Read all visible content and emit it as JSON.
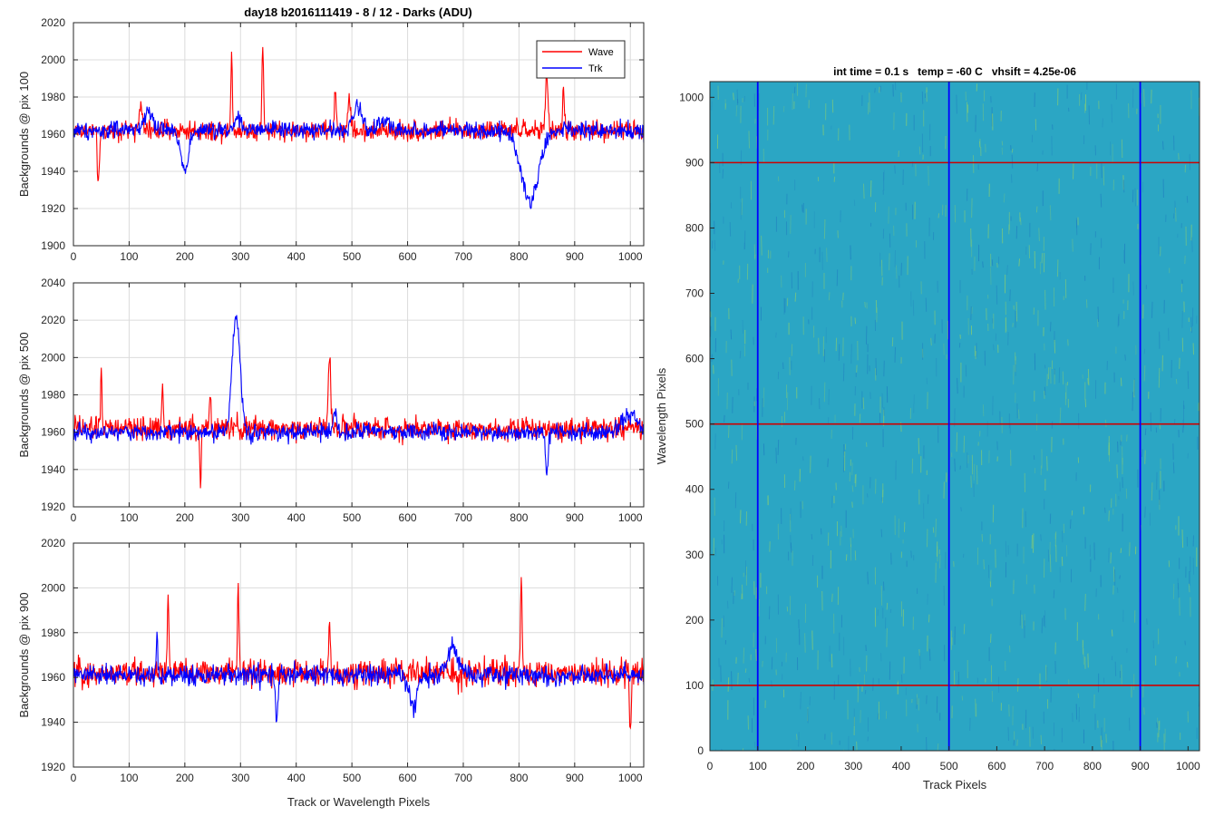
{
  "figure": {
    "main_title": "day18 b2016111419 - 8 / 12 - Darks (ADU)",
    "image_title": "int time = 0.1 s   temp = -60 C   vhsift = 4.25e-06"
  },
  "chart_data": [
    {
      "type": "line",
      "ylabel": "Backgrounds @ pix 100",
      "xlabel": "",
      "xlim": [
        0,
        1024
      ],
      "ylim": [
        1900,
        2020
      ],
      "xticks": [
        0,
        100,
        200,
        300,
        400,
        500,
        600,
        700,
        800,
        900,
        1000
      ],
      "yticks": [
        1900,
        1920,
        1940,
        1960,
        1980,
        2000,
        2020
      ],
      "grid": true,
      "legend": "top-right",
      "series": [
        {
          "name": "Wave",
          "color": "#ff0000",
          "base": 1962,
          "noise": 7,
          "features": [
            {
              "x": 45,
              "w": 3,
              "a": -28
            },
            {
              "x": 120,
              "w": 5,
              "a": 12
            },
            {
              "x": 284,
              "w": 2,
              "a": 42
            },
            {
              "x": 340,
              "w": 2,
              "a": 48
            },
            {
              "x": 495,
              "w": 3,
              "a": 20
            },
            {
              "x": 470,
              "w": 2,
              "a": 25
            },
            {
              "x": 850,
              "w": 3,
              "a": 30
            },
            {
              "x": 880,
              "w": 2,
              "a": 25
            }
          ]
        },
        {
          "name": "Trk",
          "color": "#0000ff",
          "base": 1962,
          "noise": 6,
          "features": [
            {
              "x": 135,
              "w": 12,
              "a": 10
            },
            {
              "x": 200,
              "w": 10,
              "a": -20
            },
            {
              "x": 295,
              "w": 8,
              "a": 8
            },
            {
              "x": 510,
              "w": 12,
              "a": 12
            },
            {
              "x": 820,
              "w": 22,
              "a": -38
            },
            {
              "x": 560,
              "w": 15,
              "a": 5
            }
          ]
        }
      ]
    },
    {
      "type": "line",
      "ylabel": "Backgrounds @ pix 500",
      "xlabel": "",
      "xlim": [
        0,
        1024
      ],
      "ylim": [
        1920,
        2040
      ],
      "xticks": [
        0,
        100,
        200,
        300,
        400,
        500,
        600,
        700,
        800,
        900,
        1000
      ],
      "yticks": [
        1920,
        1940,
        1960,
        1980,
        2000,
        2020,
        2040
      ],
      "grid": true,
      "series": [
        {
          "name": "Wave",
          "color": "#ff0000",
          "base": 1962,
          "noise": 8,
          "features": [
            {
              "x": 50,
              "w": 2,
              "a": 30
            },
            {
              "x": 160,
              "w": 2,
              "a": 25
            },
            {
              "x": 228,
              "w": 2,
              "a": -30
            },
            {
              "x": 460,
              "w": 3,
              "a": 40
            },
            {
              "x": 245,
              "w": 2,
              "a": 20
            }
          ]
        },
        {
          "name": "Trk",
          "color": "#0000ff",
          "base": 1960,
          "noise": 6,
          "features": [
            {
              "x": 292,
              "w": 10,
              "a": 62
            },
            {
              "x": 850,
              "w": 3,
              "a": -25
            },
            {
              "x": 1000,
              "w": 18,
              "a": 10
            },
            {
              "x": 470,
              "w": 6,
              "a": 10
            }
          ]
        }
      ]
    },
    {
      "type": "line",
      "ylabel": "Backgrounds @ pix 900",
      "xlabel": "Track or Wavelength Pixels",
      "xlim": [
        0,
        1024
      ],
      "ylim": [
        1920,
        2020
      ],
      "xticks": [
        0,
        100,
        200,
        300,
        400,
        500,
        600,
        700,
        800,
        900,
        1000
      ],
      "yticks": [
        1920,
        1940,
        1960,
        1980,
        2000,
        2020
      ],
      "grid": true,
      "series": [
        {
          "name": "Wave",
          "color": "#ff0000",
          "base": 1962,
          "noise": 8,
          "features": [
            {
              "x": 170,
              "w": 2,
              "a": 35
            },
            {
              "x": 296,
              "w": 2,
              "a": 40
            },
            {
              "x": 804,
              "w": 2,
              "a": 42
            },
            {
              "x": 1000,
              "w": 2,
              "a": -25
            },
            {
              "x": 460,
              "w": 2,
              "a": 20
            }
          ]
        },
        {
          "name": "Trk",
          "color": "#0000ff",
          "base": 1961,
          "noise": 6,
          "features": [
            {
              "x": 365,
              "w": 3,
              "a": -22
            },
            {
              "x": 610,
              "w": 10,
              "a": -14
            },
            {
              "x": 680,
              "w": 14,
              "a": 12
            },
            {
              "x": 150,
              "w": 2,
              "a": 18
            }
          ]
        }
      ]
    },
    {
      "type": "heatmap",
      "title": "int time = 0.1 s   temp = -60 C   vhsift = 4.25e-06",
      "xlabel": "Track Pixels",
      "ylabel": "Wavelength Pixels",
      "xlim": [
        0,
        1024
      ],
      "ylim": [
        0,
        1024
      ],
      "xticks": [
        0,
        100,
        200,
        300,
        400,
        500,
        600,
        700,
        800,
        900,
        1000
      ],
      "yticks": [
        0,
        100,
        200,
        300,
        400,
        500,
        600,
        700,
        800,
        900,
        1000
      ],
      "colormap": {
        "base": "#2ba6c4",
        "low": "#1f7fc0",
        "high": "#8ccf6e"
      },
      "vlines": {
        "x": [
          100,
          500,
          900
        ],
        "color": "#0000ff"
      },
      "hlines": {
        "y": [
          100,
          500,
          900
        ],
        "color": "#cc0000"
      }
    }
  ]
}
